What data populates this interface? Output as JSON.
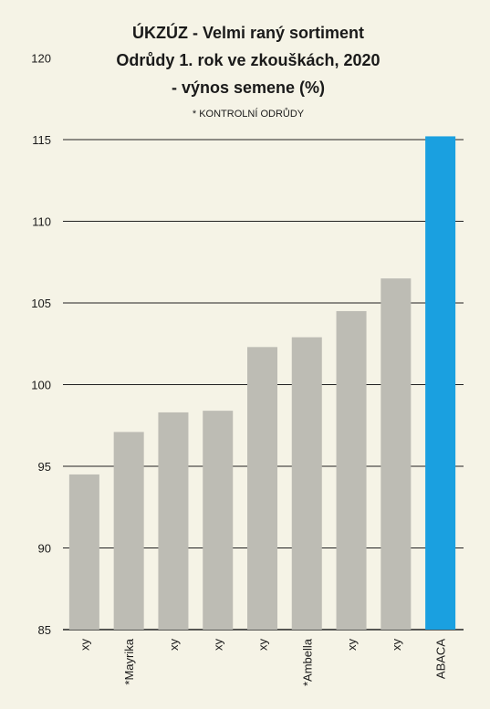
{
  "chart_data": {
    "type": "bar",
    "title_lines": [
      "ÚKZÚZ - Velmi raný sortiment",
      "Odrůdy 1. rok ve zkouškách, 2020",
      "- výnos semene (%)"
    ],
    "note": "* KONTROLNÍ ODRŮDY",
    "categories": [
      "xy",
      "*Mayrika",
      "xy",
      "xy",
      "xy",
      "*Ambella",
      "xy",
      "xy",
      "ABACA"
    ],
    "values": [
      94.5,
      97.1,
      98.3,
      98.4,
      102.3,
      102.9,
      104.5,
      106.5,
      115.2
    ],
    "highlight_index": 8,
    "ylim": [
      85,
      120
    ],
    "yticks": [
      85,
      90,
      95,
      100,
      105,
      110,
      115,
      120
    ],
    "gridlines": [
      85,
      90,
      95,
      100,
      105,
      110,
      115
    ],
    "colors": {
      "bar": "#bdbcb4",
      "highlight": "#1aa0e0",
      "grid": "#222222",
      "background": "#f5f3e6"
    },
    "legend": "none",
    "xlabel": "",
    "ylabel": ""
  }
}
